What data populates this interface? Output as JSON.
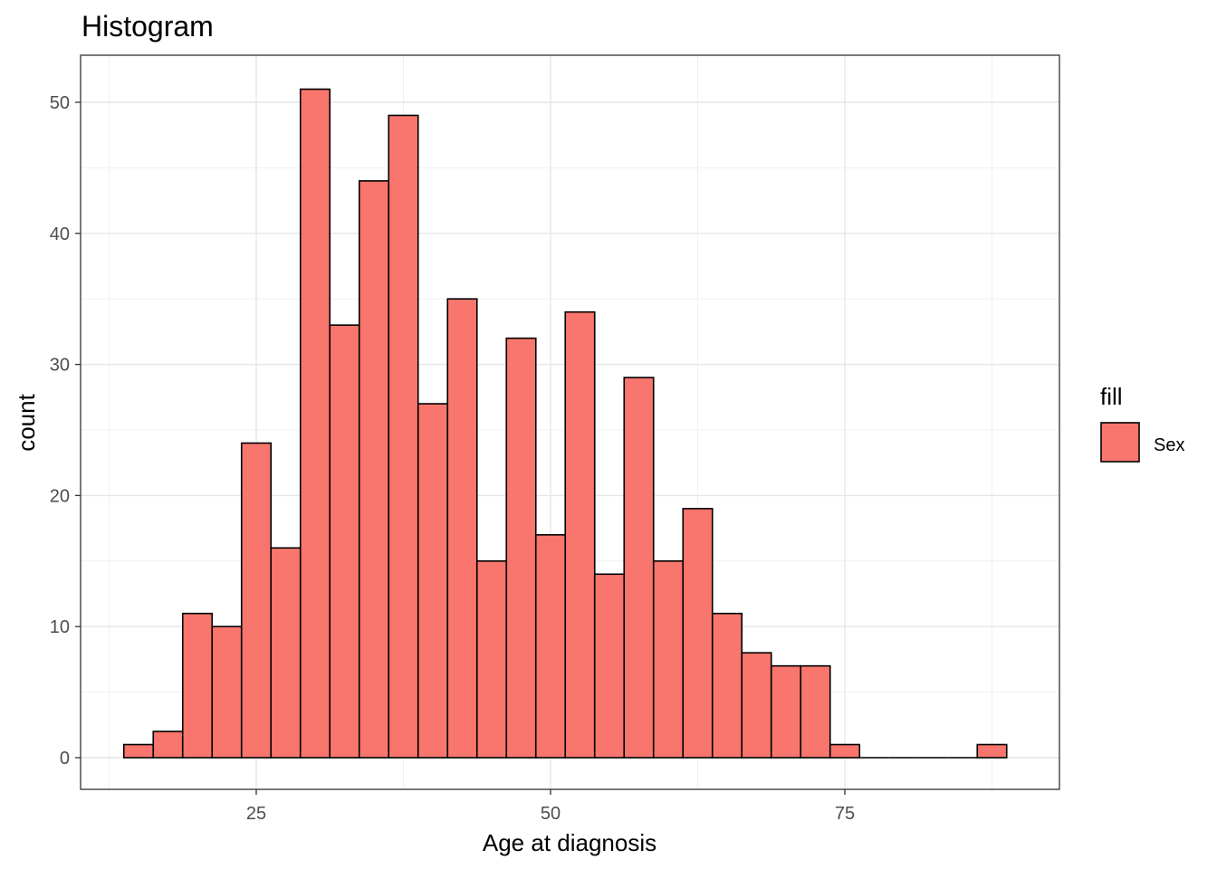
{
  "chart_data": {
    "type": "bar",
    "title": "Histogram",
    "xlabel": "Age at diagnosis",
    "ylabel": "count",
    "bin_width": 2.5,
    "bin_centers": [
      15,
      17.5,
      20,
      22.5,
      25,
      27.5,
      30,
      32.5,
      35,
      37.5,
      40,
      42.5,
      45,
      47.5,
      50,
      52.5,
      55,
      57.5,
      60,
      62.5,
      65,
      67.5,
      70,
      72.5,
      75,
      77.5,
      80,
      82.5,
      85,
      87.5
    ],
    "values": [
      1,
      2,
      11,
      10,
      24,
      16,
      51,
      33,
      44,
      49,
      27,
      35,
      15,
      32,
      17,
      34,
      14,
      29,
      15,
      19,
      11,
      8,
      7,
      7,
      1,
      0,
      0,
      0,
      0,
      1
    ],
    "xlim": [
      12.5,
      90
    ],
    "ylim": [
      0,
      52
    ],
    "x_ticks": [
      25,
      50,
      75
    ],
    "y_ticks": [
      0,
      10,
      20,
      30,
      40,
      50
    ],
    "grid": true,
    "bar_fill": "#F8766D",
    "bar_stroke": "#000000",
    "legend": {
      "title": "fill",
      "entries": [
        {
          "label": "Sex",
          "color": "#F8766D"
        }
      ],
      "position": "right"
    }
  }
}
